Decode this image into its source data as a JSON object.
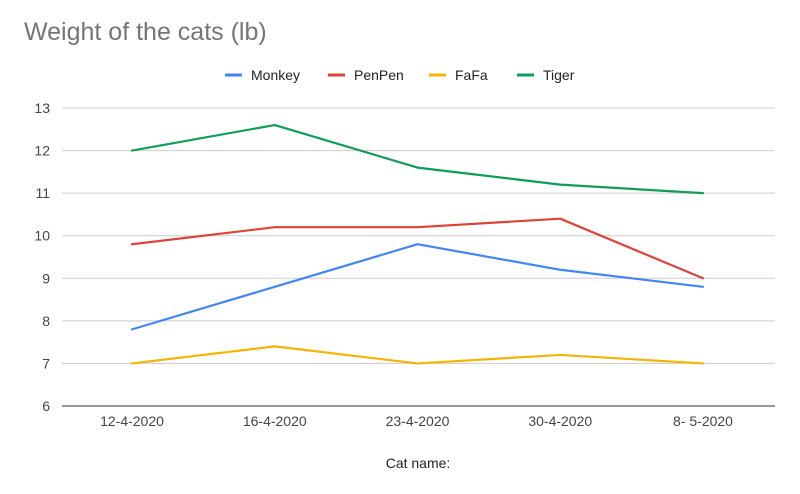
{
  "chart_data": {
    "type": "line",
    "title": "Weight of the cats (lb)",
    "xlabel": "Cat name:",
    "ylabel": "",
    "categories": [
      "12-4-2020",
      "16-4-2020",
      "23-4-2020",
      "30-4-2020",
      "8- 5-2020"
    ],
    "ylim": [
      6,
      13
    ],
    "yticks": [
      6,
      7,
      8,
      9,
      10,
      11,
      12,
      13
    ],
    "grid": true,
    "legend_position": "top",
    "series": [
      {
        "name": "Monkey",
        "color": "#4285f4",
        "values": [
          7.8,
          8.8,
          9.8,
          9.2,
          8.8
        ]
      },
      {
        "name": "PenPen",
        "color": "#db4437",
        "values": [
          9.8,
          10.2,
          10.2,
          10.4,
          9.0
        ]
      },
      {
        "name": "FaFa",
        "color": "#f4b400",
        "values": [
          7.0,
          7.4,
          7.0,
          7.2,
          7.0
        ]
      },
      {
        "name": "Tiger",
        "color": "#0f9d58",
        "values": [
          12.0,
          12.6,
          11.6,
          11.2,
          11.0
        ]
      }
    ]
  }
}
